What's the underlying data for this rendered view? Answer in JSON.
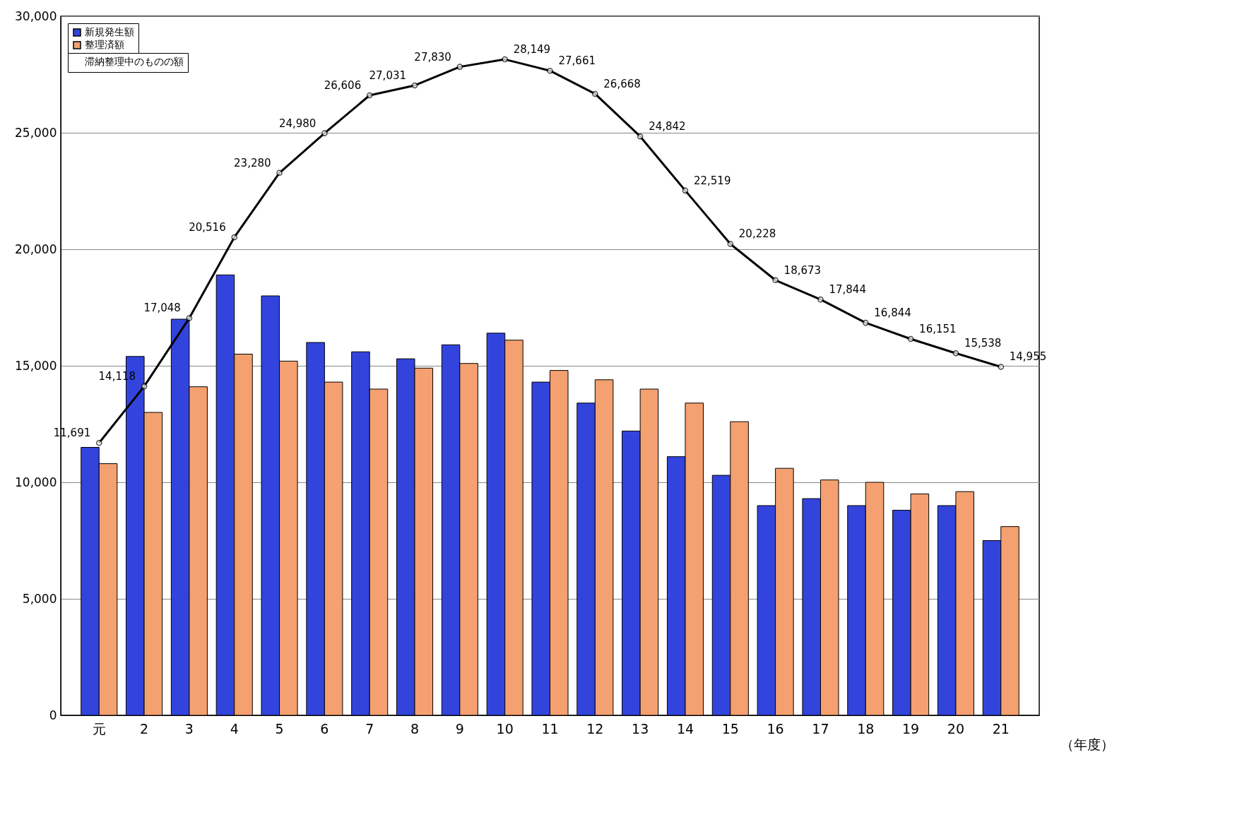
{
  "chart_data": {
    "type": "bar",
    "xlabel": "（年度）",
    "categories": [
      "元",
      "2",
      "3",
      "4",
      "5",
      "6",
      "7",
      "8",
      "9",
      "10",
      "11",
      "12",
      "13",
      "14",
      "15",
      "16",
      "17",
      "18",
      "19",
      "20",
      "21"
    ],
    "series": [
      {
        "name": "新規発生額",
        "type": "bar",
        "color": "#3344dd",
        "values": [
          11500,
          15400,
          17000,
          18900,
          18000,
          16000,
          15600,
          15300,
          15900,
          16400,
          14300,
          13400,
          12200,
          11100,
          10300,
          9000,
          9300,
          9000,
          8800,
          9000,
          7500
        ]
      },
      {
        "name": "整理済額",
        "type": "bar",
        "color": "#f4a070",
        "values": [
          10800,
          13000,
          14100,
          15500,
          15200,
          14300,
          14000,
          14900,
          15100,
          16100,
          14800,
          14400,
          14000,
          13400,
          12600,
          10600,
          10100,
          10000,
          9500,
          9600,
          8100
        ]
      },
      {
        "name": "滞納整理中のものの額",
        "type": "line",
        "color": "#000000",
        "marker": "circle",
        "value_labels": [
          "11,691",
          "14,118",
          "17,048",
          "20,516",
          "23,280",
          "24,980",
          "26,606",
          "27,031",
          "27,830",
          "28,149",
          "27,661",
          "26,668",
          "24,842",
          "22,519",
          "20,228",
          "18,673",
          "17,844",
          "16,844",
          "16,151",
          "15,538",
          "14,955"
        ],
        "values": [
          11691,
          14118,
          17048,
          20516,
          23280,
          24980,
          26606,
          27031,
          27830,
          28149,
          27661,
          26668,
          24842,
          22519,
          20228,
          18673,
          17844,
          16844,
          16151,
          15538,
          14955
        ]
      }
    ],
    "ylim": [
      0,
      30000
    ],
    "yticks": [
      0,
      {
        "value": 5000,
        "label": "5,000"
      },
      {
        "value": 10000,
        "label": "10,000"
      },
      {
        "value": 15000,
        "label": "15,000"
      },
      {
        "value": 20000,
        "label": "20,000"
      },
      {
        "value": 25000,
        "label": "25,000"
      },
      {
        "value": 30000,
        "label": "30,000"
      }
    ],
    "grid": "y",
    "legend": "top left"
  }
}
